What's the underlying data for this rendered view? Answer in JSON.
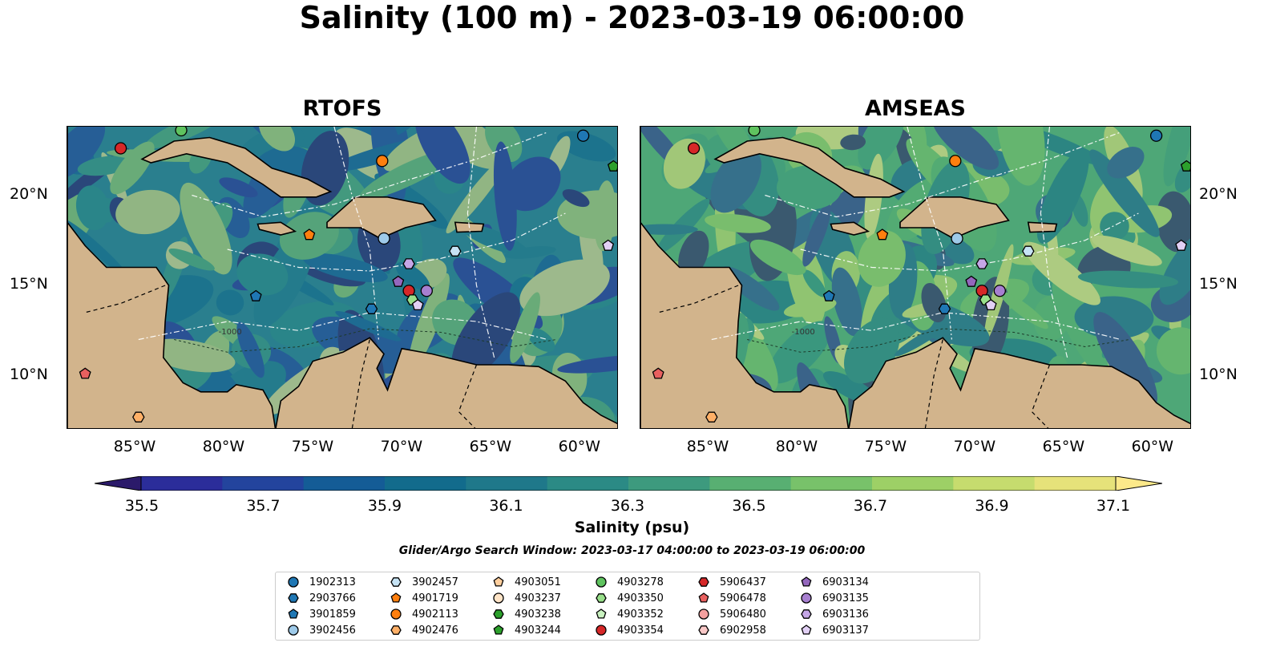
{
  "title": "Salinity (100 m) - 2023-03-19 06:00:00",
  "panels": [
    {
      "title": "RTOFS",
      "field_color": "#2a7f8e"
    },
    {
      "title": "AMSEAS",
      "field_color": "#4ea777"
    }
  ],
  "lon_ticks": [
    "85°W",
    "80°W",
    "75°W",
    "70°W",
    "65°W",
    "60°W"
  ],
  "lat_ticks": [
    "20°N",
    "15°N",
    "10°N"
  ],
  "contour_label": "-1000",
  "colorbar": {
    "label": "Salinity (psu)",
    "ticks": [
      "35.5",
      "35.7",
      "35.9",
      "36.1",
      "36.3",
      "36.5",
      "36.7",
      "36.9",
      "37.1"
    ],
    "colors": [
      "#2b1a6a",
      "#2b2d9a",
      "#23449d",
      "#145c96",
      "#126b8c",
      "#1f788a",
      "#2b8a85",
      "#3d9a7e",
      "#58af72",
      "#78c26a",
      "#9dd066",
      "#c6dc6e",
      "#e6e27a",
      "#fce98a"
    ]
  },
  "search_window": "Glider/Argo Search Window: 2023-03-17 04:00:00 to 2023-03-19 06:00:00",
  "legend": [
    {
      "id": "1902313",
      "color": "#1f77b4",
      "shape": "circle"
    },
    {
      "id": "2903766",
      "color": "#1f77b4",
      "shape": "hexagon"
    },
    {
      "id": "3901859",
      "color": "#1f77b4",
      "shape": "pentagon"
    },
    {
      "id": "3902456",
      "color": "#9ecae9",
      "shape": "circle"
    },
    {
      "id": "3902457",
      "color": "#c6e3f5",
      "shape": "hexagon"
    },
    {
      "id": "4901719",
      "color": "#ff7f0e",
      "shape": "pentagon"
    },
    {
      "id": "4902113",
      "color": "#ff7f0e",
      "shape": "circle"
    },
    {
      "id": "4902476",
      "color": "#ffb067",
      "shape": "hexagon"
    },
    {
      "id": "4903051",
      "color": "#ffcf9e",
      "shape": "pentagon"
    },
    {
      "id": "4903237",
      "color": "#ffe4c7",
      "shape": "circle"
    },
    {
      "id": "4903238",
      "color": "#2ca02c",
      "shape": "hexagon"
    },
    {
      "id": "4903244",
      "color": "#2ca02c",
      "shape": "pentagon"
    },
    {
      "id": "4903278",
      "color": "#5fc35f",
      "shape": "circle"
    },
    {
      "id": "4903350",
      "color": "#98df8a",
      "shape": "hexagon"
    },
    {
      "id": "4903352",
      "color": "#c9f2c0",
      "shape": "pentagon"
    },
    {
      "id": "4903354",
      "color": "#d62728",
      "shape": "circle"
    },
    {
      "id": "5906437",
      "color": "#d62728",
      "shape": "hexagon"
    },
    {
      "id": "5906478",
      "color": "#e8605f",
      "shape": "pentagon"
    },
    {
      "id": "5906480",
      "color": "#f4a09f",
      "shape": "circle"
    },
    {
      "id": "6902958",
      "color": "#f9c8c7",
      "shape": "hexagon"
    },
    {
      "id": "6903134",
      "color": "#9467bd",
      "shape": "pentagon"
    },
    {
      "id": "6903135",
      "color": "#a77fd0",
      "shape": "circle"
    },
    {
      "id": "6903136",
      "color": "#c5a6e6",
      "shape": "hexagon"
    },
    {
      "id": "6903137",
      "color": "#e2d0f5",
      "shape": "pentagon"
    }
  ],
  "markers": [
    {
      "id": "1902313",
      "lon": -60.0,
      "lat": 23.3
    },
    {
      "id": "4903278",
      "lon": -82.6,
      "lat": 23.6
    },
    {
      "id": "4903354",
      "lon": -86.0,
      "lat": 22.6
    },
    {
      "id": "4902113",
      "lon": -71.3,
      "lat": 21.9
    },
    {
      "id": "4903244",
      "lon": -58.3,
      "lat": 21.6
    },
    {
      "id": "4901719",
      "lon": -75.4,
      "lat": 17.8
    },
    {
      "id": "3902456",
      "lon": -71.2,
      "lat": 17.6
    },
    {
      "id": "6903137",
      "lon": -58.6,
      "lat": 17.2
    },
    {
      "id": "3902457",
      "lon": -67.2,
      "lat": 16.9
    },
    {
      "id": "6903136",
      "lon": -69.8,
      "lat": 16.2
    },
    {
      "id": "6903134",
      "lon": -70.4,
      "lat": 15.2
    },
    {
      "id": "4903354",
      "lon": -69.8,
      "lat": 14.7
    },
    {
      "id": "6903135",
      "lon": -68.8,
      "lat": 14.7
    },
    {
      "id": "4903350",
      "lon": -69.6,
      "lat": 14.2
    },
    {
      "id": "6903137",
      "lon": -69.3,
      "lat": 13.9
    },
    {
      "id": "3901859",
      "lon": -78.4,
      "lat": 14.4
    },
    {
      "id": "2903766",
      "lon": -71.9,
      "lat": 13.7
    },
    {
      "id": "5906478",
      "lon": -88.0,
      "lat": 10.1
    },
    {
      "id": "4902476",
      "lon": -85.0,
      "lat": 7.7
    }
  ]
}
